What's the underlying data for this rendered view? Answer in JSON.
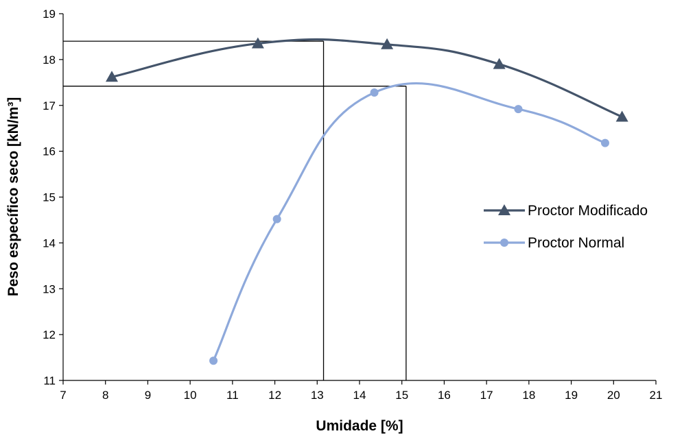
{
  "chart_data": {
    "type": "line",
    "xlabel": "Umidade [%]",
    "ylabel": "Peso específico seco [kN/m³]",
    "xlim": [
      7,
      21
    ],
    "ylim": [
      11,
      19
    ],
    "x_ticks": [
      "7",
      "8",
      "9",
      "10",
      "11",
      "12",
      "13",
      "14",
      "15",
      "16",
      "17",
      "18",
      "19",
      "20",
      "21"
    ],
    "y_ticks": [
      "11",
      "12",
      "13",
      "14",
      "15",
      "16",
      "17",
      "18",
      "19"
    ],
    "grid": false,
    "legend_position": "right",
    "series": [
      {
        "name": "Proctor Modificado",
        "color": "#44546A",
        "marker": "triangle",
        "x": [
          8.15,
          11.6,
          14.65,
          17.3,
          20.2
        ],
        "y": [
          17.62,
          18.35,
          18.33,
          17.9,
          16.75
        ]
      },
      {
        "name": "Proctor Normal",
        "color": "#8EA9DB",
        "marker": "circle",
        "x": [
          10.55,
          12.05,
          14.35,
          17.75,
          19.8
        ],
        "y": [
          11.43,
          14.52,
          17.28,
          16.92,
          16.18
        ]
      }
    ],
    "reference_lines": [
      {
        "x": 13.15,
        "y": 18.4
      },
      {
        "x": 15.1,
        "y": 17.42
      }
    ]
  }
}
